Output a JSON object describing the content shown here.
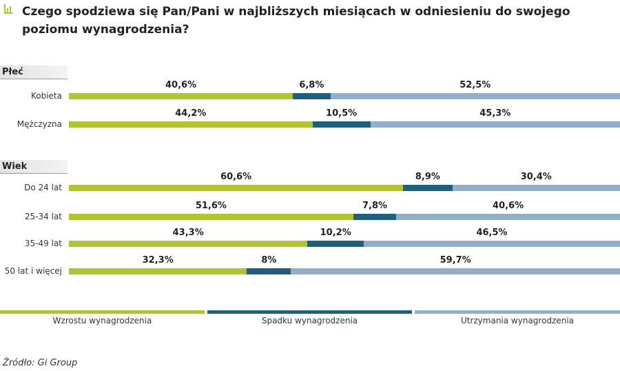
{
  "title": "Czego spodziewa się Pan/Pani w najbliższych miesiącach w odniesieniu do swojego poziomu wynagrodzenia?",
  "source": "Źródło: Gi Group",
  "colors": {
    "wzrost": "#b3c432",
    "spadek": "#1f5f80",
    "utrzymanie": "#93aec9",
    "icon": "#b3c432"
  },
  "chart_data": {
    "type": "bar",
    "stacked": true,
    "orientation": "horizontal",
    "unit": "%",
    "xlim": [
      0,
      100
    ],
    "legend": [
      "Wzrostu wynagrodzenia",
      "Spadku wynagrodzenia",
      "Utrzymania wynagrodzenia"
    ],
    "legend_position": "bottom",
    "groups": [
      {
        "name": "Płeć",
        "rows": [
          {
            "label": "Kobieta",
            "values": [
              40.6,
              6.8,
              52.5
            ],
            "labels": [
              "40,6%",
              "6,8%",
              "52,5%"
            ]
          },
          {
            "label": "Mężczyzna",
            "values": [
              44.2,
              10.5,
              45.3
            ],
            "labels": [
              "44,2%",
              "10,5%",
              "45,3%"
            ]
          }
        ]
      },
      {
        "name": "Wiek",
        "rows": [
          {
            "label": "Do 24 lat",
            "values": [
              60.6,
              8.9,
              30.4
            ],
            "labels": [
              "60,6%",
              "8,9%",
              "30,4%"
            ]
          },
          {
            "label": "25-34 lat",
            "values": [
              51.6,
              7.8,
              40.6
            ],
            "labels": [
              "51,6%",
              "7,8%",
              "40,6%"
            ]
          },
          {
            "label": "35-49 lat",
            "values": [
              43.3,
              10.2,
              46.5
            ],
            "labels": [
              "43,3%",
              "10,2%",
              "46,5%"
            ]
          },
          {
            "label": "50 lat i więcej",
            "values": [
              32.3,
              8,
              59.7
            ],
            "labels": [
              "32,3%",
              "8%",
              "59,7%"
            ]
          }
        ]
      }
    ]
  }
}
